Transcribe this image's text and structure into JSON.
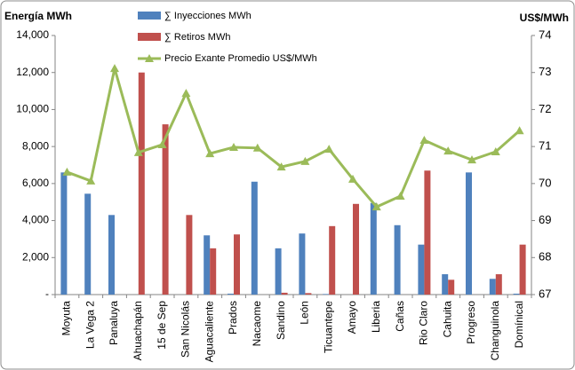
{
  "chart_data": {
    "type": "bar",
    "y_label": "Energía MWh",
    "y2_label": "US$/MWh",
    "categories": [
      "Moyuta",
      "La Vega 2",
      "Panaluya",
      "Ahuachapán",
      "15 de Sep",
      "San Nicolás",
      "Aguacaliente",
      "Prados",
      "Nacaome",
      "Sandino",
      "León",
      "Ticuantepe",
      "Amayo",
      "Liberia",
      "Cañas",
      "Rio Claro",
      "Cahuita",
      "Progreso",
      "Changuinola",
      "Domínical"
    ],
    "series": [
      {
        "name": "∑ Inyecciones MWh",
        "type": "bar",
        "color": "#4f81bd",
        "values": [
          6600,
          5450,
          4300,
          0,
          0,
          0,
          3200,
          50,
          6100,
          2500,
          3300,
          30,
          0,
          4950,
          3750,
          2700,
          1100,
          6600,
          850,
          50
        ]
      },
      {
        "name": "∑ Retiros MWh",
        "type": "bar",
        "color": "#c0504d",
        "values": [
          0,
          0,
          0,
          12000,
          9200,
          4300,
          2500,
          3250,
          0,
          100,
          80,
          3700,
          4900,
          0,
          0,
          6700,
          800,
          0,
          1100,
          2700
        ]
      },
      {
        "name": "Precio Exante Promedio US$/MWh",
        "type": "line",
        "axis": "y2",
        "color": "#9bbb59",
        "values": [
          70.31,
          70.07,
          73.11,
          70.84,
          71.05,
          72.44,
          70.81,
          70.98,
          70.96,
          70.45,
          70.6,
          70.93,
          70.12,
          69.37,
          69.66,
          71.17,
          70.88,
          70.64,
          70.86,
          71.43
        ]
      }
    ],
    "ylim": [
      0,
      14000
    ],
    "yticks": [
      {
        "value": 0,
        "label": "-"
      },
      {
        "value": 2000,
        "label": "2,000"
      },
      {
        "value": 4000,
        "label": "4,000"
      },
      {
        "value": 6000,
        "label": "6,000"
      },
      {
        "value": 8000,
        "label": "8,000"
      },
      {
        "value": 10000,
        "label": "10,000"
      },
      {
        "value": 12000,
        "label": "12,000"
      },
      {
        "value": 14000,
        "label": "14,000"
      }
    ],
    "y2lim": [
      67,
      74
    ],
    "y2ticks": [
      67,
      68,
      69,
      70,
      71,
      72,
      73,
      74
    ],
    "legend": "top-left",
    "grid": false
  }
}
